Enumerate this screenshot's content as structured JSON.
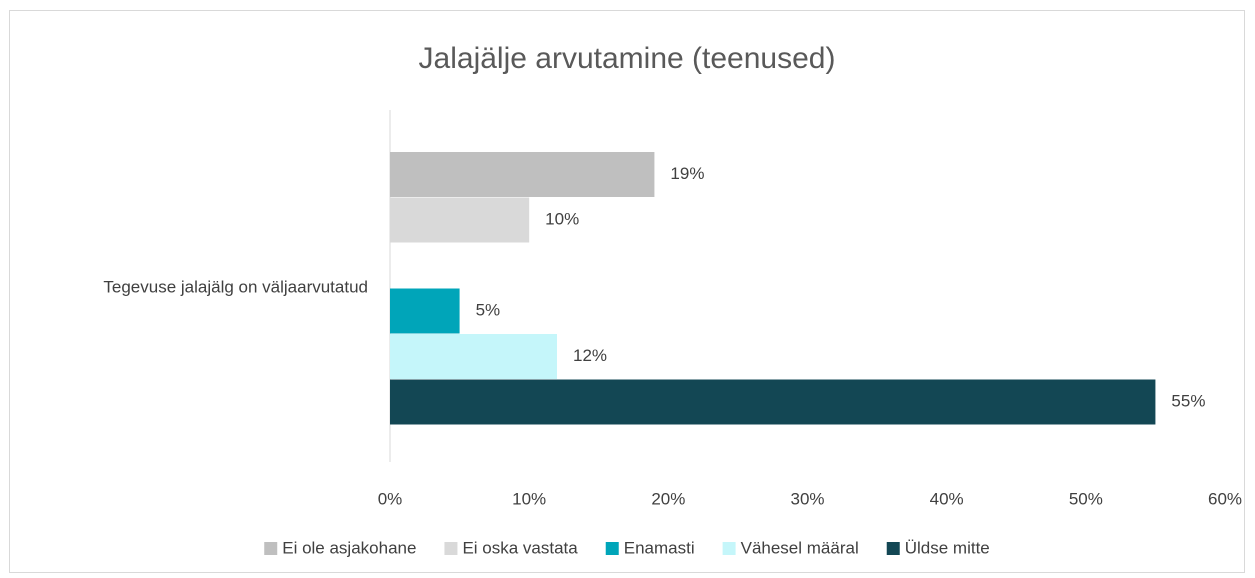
{
  "chart_data": {
    "type": "hbar",
    "title": "Jalajälje arvutamine (teenused)",
    "categories": [
      "Tegevuse jalajälg on väljaarvutatud"
    ],
    "series": [
      {
        "name": "Ei ole asjakohane",
        "color": "#bfbfbf",
        "values": [
          19
        ],
        "value_labels": [
          "19%"
        ]
      },
      {
        "name": "Ei oska vastata",
        "color": "#d9d9d9",
        "values": [
          10
        ],
        "value_labels": [
          "10%"
        ]
      },
      {
        "name": "Enamasti",
        "color": "#00a5b9",
        "values": [
          5
        ],
        "value_labels": [
          "5%"
        ]
      },
      {
        "name": "Vähesel määral",
        "color": "#c5f6fa",
        "values": [
          12
        ],
        "value_labels": [
          "12%"
        ]
      },
      {
        "name": "Üldse mitte",
        "color": "#134754",
        "values": [
          55
        ],
        "value_labels": [
          "55%"
        ]
      }
    ],
    "xlim": [
      0,
      60
    ],
    "xticks": [
      {
        "value": 0,
        "label": "0%"
      },
      {
        "value": 10,
        "label": "10%"
      },
      {
        "value": 20,
        "label": "20%"
      },
      {
        "value": 30,
        "label": "30%"
      },
      {
        "value": 40,
        "label": "40%"
      },
      {
        "value": 50,
        "label": "50%"
      },
      {
        "value": 60,
        "label": "60%"
      }
    ],
    "legend": "bottom",
    "grid": false
  }
}
